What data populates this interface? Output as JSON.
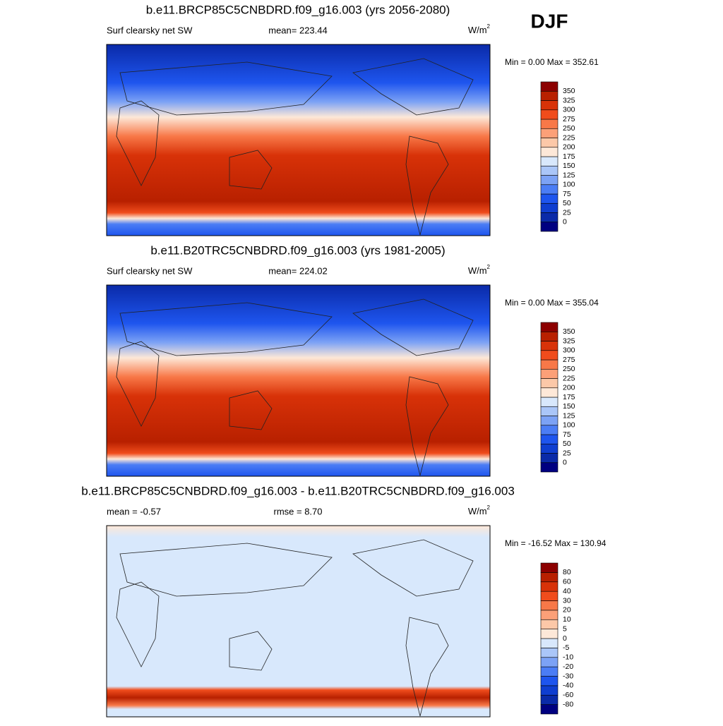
{
  "season": "DJF",
  "panels": [
    {
      "title": "b.e11.BRCP85C5CNBDRD.f09_g16.003 (yrs 2056-2080)",
      "left_label": "Surf clearsky net SW",
      "center_label": "mean= 223.44",
      "units": {
        "base": "W/m",
        "sup": "2"
      },
      "minmax": "Min =   0.00 Max = 352.61",
      "colorbar": {
        "labels": [
          "0",
          "25",
          "50",
          "75",
          "100",
          "125",
          "150",
          "175",
          "200",
          "225",
          "250",
          "275",
          "300",
          "325",
          "350"
        ],
        "colors": [
          "#000080",
          "#0a2aa8",
          "#0f3ed0",
          "#1e55ee",
          "#4b7df5",
          "#7ca2f5",
          "#aac6f8",
          "#d8e8fc",
          "#fde8d8",
          "#fcc8a8",
          "#fca078",
          "#f87848",
          "#f04c1c",
          "#d83208",
          "#b82000",
          "#8c0000"
        ]
      }
    },
    {
      "title": "b.e11.B20TRC5CNBDRD.f09_g16.003 (yrs 1981-2005)",
      "left_label": "Surf clearsky net SW",
      "center_label": "mean= 224.02",
      "units": {
        "base": "W/m",
        "sup": "2"
      },
      "minmax": "Min =   0.00 Max = 355.04",
      "colorbar": {
        "labels": [
          "0",
          "25",
          "50",
          "75",
          "100",
          "125",
          "150",
          "175",
          "200",
          "225",
          "250",
          "275",
          "300",
          "325",
          "350"
        ],
        "colors": [
          "#000080",
          "#0a2aa8",
          "#0f3ed0",
          "#1e55ee",
          "#4b7df5",
          "#7ca2f5",
          "#aac6f8",
          "#d8e8fc",
          "#fde8d8",
          "#fcc8a8",
          "#fca078",
          "#f87848",
          "#f04c1c",
          "#d83208",
          "#b82000",
          "#8c0000"
        ]
      }
    },
    {
      "title": "b.e11.BRCP85C5CNBDRD.f09_g16.003 - b.e11.B20TRC5CNBDRD.f09_g16.003",
      "left_label": "mean =  -0.57",
      "center_label": "rmse =   8.70",
      "units": {
        "base": "W/m",
        "sup": "2"
      },
      "minmax": "Min = -16.52 Max = 130.94",
      "colorbar": {
        "labels": [
          "-80",
          "-60",
          "-40",
          "-30",
          "-20",
          "-10",
          "-5",
          "0",
          "5",
          "10",
          "20",
          "30",
          "40",
          "60",
          "80"
        ],
        "colors": [
          "#000080",
          "#0a2aa8",
          "#0f3ed0",
          "#1e55ee",
          "#4b7df5",
          "#7ca2f5",
          "#aac6f8",
          "#d8e8fc",
          "#fde8d8",
          "#fcc8a8",
          "#fca078",
          "#f87848",
          "#f04c1c",
          "#d83208",
          "#b82000",
          "#8c0000"
        ]
      }
    }
  ]
}
